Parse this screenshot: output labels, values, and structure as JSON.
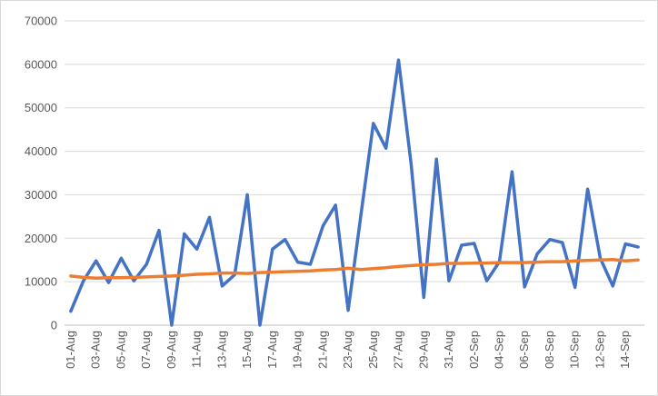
{
  "chart_data": {
    "type": "line",
    "title": "",
    "xlabel": "",
    "ylabel": "",
    "ylim": [
      0,
      70000
    ],
    "yticks": [
      0,
      10000,
      20000,
      30000,
      40000,
      50000,
      60000,
      70000
    ],
    "grid": "horizontal",
    "legend": "none",
    "x": [
      "01-Aug",
      "02-Aug",
      "03-Aug",
      "04-Aug",
      "05-Aug",
      "06-Aug",
      "07-Aug",
      "08-Aug",
      "09-Aug",
      "10-Aug",
      "11-Aug",
      "12-Aug",
      "13-Aug",
      "14-Aug",
      "15-Aug",
      "16-Aug",
      "17-Aug",
      "18-Aug",
      "19-Aug",
      "20-Aug",
      "21-Aug",
      "22-Aug",
      "23-Aug",
      "24-Aug",
      "25-Aug",
      "26-Aug",
      "27-Aug",
      "28-Aug",
      "29-Aug",
      "30-Aug",
      "31-Aug",
      "01-Sep",
      "02-Sep",
      "03-Sep",
      "04-Sep",
      "05-Sep",
      "06-Sep",
      "07-Sep",
      "08-Sep",
      "09-Sep",
      "10-Sep",
      "11-Sep",
      "12-Sep",
      "13-Sep",
      "14-Sep",
      "15-Sep"
    ],
    "tick_labels": [
      "01-Aug",
      "03-Aug",
      "05-Aug",
      "07-Aug",
      "09-Aug",
      "11-Aug",
      "13-Aug",
      "15-Aug",
      "17-Aug",
      "19-Aug",
      "21-Aug",
      "23-Aug",
      "25-Aug",
      "27-Aug",
      "29-Aug",
      "31-Aug",
      "02-Sep",
      "04-Sep",
      "06-Sep",
      "08-Sep",
      "10-Sep",
      "12-Sep",
      "14-Sep"
    ],
    "series": [
      {
        "color": "#4472c4",
        "values": [
          3200,
          10200,
          14800,
          9800,
          15400,
          10200,
          14000,
          21800,
          0,
          21000,
          17500,
          24800,
          9000,
          11600,
          30000,
          0,
          17500,
          19700,
          14500,
          14000,
          22800,
          27600,
          3400,
          25000,
          46400,
          40700,
          61000,
          37000,
          6400,
          38200,
          10200,
          18400,
          18800,
          10200,
          14600,
          35300,
          8800,
          16400,
          19700,
          19000,
          8700,
          31300,
          15400,
          9000,
          18700,
          18000
        ]
      },
      {
        "color": "#ed7d31",
        "values": [
          11300,
          11000,
          10800,
          10900,
          10900,
          11000,
          11100,
          11200,
          11300,
          11500,
          11700,
          11800,
          12000,
          12000,
          11900,
          12100,
          12200,
          12300,
          12400,
          12500,
          12700,
          12800,
          13100,
          12800,
          13000,
          13200,
          13500,
          13700,
          13900,
          14000,
          14200,
          14200,
          14300,
          14300,
          14400,
          14400,
          14400,
          14500,
          14600,
          14600,
          14800,
          14900,
          15000,
          15100,
          14800,
          15000
        ]
      }
    ]
  }
}
